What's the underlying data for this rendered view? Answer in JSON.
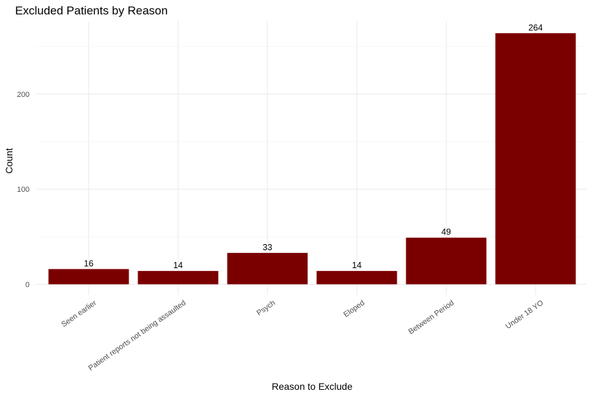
{
  "chart_data": {
    "type": "bar",
    "title": "Excluded Patients by Reason",
    "xlabel": "Reason to Exclude",
    "ylabel": "Count",
    "categories": [
      "Seen earlier",
      "Patient reports not being assaulted",
      "Psych",
      "Eloped",
      "Between Period",
      "Under 18 YO"
    ],
    "values": [
      16,
      14,
      33,
      14,
      49,
      264
    ],
    "data_labels": [
      "16",
      "14",
      "33",
      "14",
      "49",
      "264"
    ],
    "yticks": [
      0,
      100,
      200
    ],
    "ylim": [
      0,
      264
    ],
    "bar_color": "#7a0000",
    "grid": true,
    "legend": "none"
  }
}
